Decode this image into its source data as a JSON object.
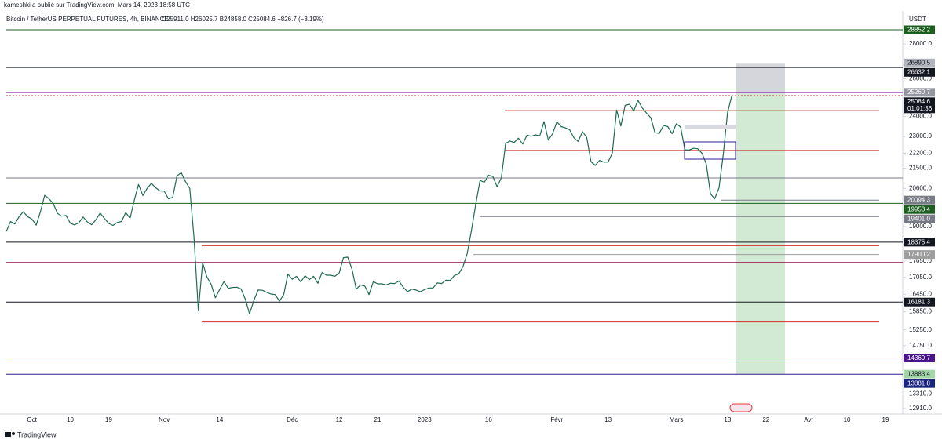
{
  "header": {
    "published": "kameshki a publié sur TradingView.com, Mars 14, 2023 18:58 UTC",
    "brand": "TradingView"
  },
  "chart_data": {
    "type": "line",
    "title": "Bitcoin / TetherUS PERPETUAL FUTURES, 4h, BINANCE",
    "ohlc": "O25911.0 H26025.7 B24858.0 C25084.6 −826.7 (−3.19%)",
    "y_unit": "USDT",
    "log_scale": true,
    "ylim": [
      12820,
      30130
    ],
    "yticks": [
      {
        "value": 28000,
        "label": "28000.0"
      },
      {
        "value": 26000,
        "label": "26000.0"
      },
      {
        "value": 24000,
        "label": "24000.0"
      },
      {
        "value": 23000,
        "label": "23000.0"
      },
      {
        "value": 22200,
        "label": "22200.0"
      },
      {
        "value": 21500,
        "label": "21500.0"
      },
      {
        "value": 20600,
        "label": "20600.0"
      },
      {
        "value": 19000,
        "label": "19000.0"
      },
      {
        "value": 17650,
        "label": "17650.0"
      },
      {
        "value": 17050,
        "label": "17050.0"
      },
      {
        "value": 16450,
        "label": "16450.0"
      },
      {
        "value": 15850,
        "label": "15850.0"
      },
      {
        "value": 15250,
        "label": "15250.0"
      },
      {
        "value": 14750,
        "label": "14750.0"
      },
      {
        "value": 13310,
        "label": "13310.0"
      },
      {
        "value": 12910,
        "label": "12910.0"
      }
    ],
    "categories": [
      null,
      null,
      null,
      null,
      null,
      null,
      "Oct",
      null,
      null,
      null,
      null,
      null,
      null,
      null,
      null,
      "10",
      null,
      null,
      null,
      null,
      null,
      null,
      null,
      null,
      "19",
      null,
      null,
      null,
      null,
      null,
      null,
      null,
      null,
      null,
      null,
      null,
      null,
      "Nov",
      null,
      null,
      null,
      null,
      null,
      null,
      null,
      null,
      null,
      null,
      null,
      null,
      "14",
      null,
      null,
      null,
      null,
      null,
      null,
      null,
      null,
      null,
      null,
      null,
      null,
      null,
      null,
      null,
      null,
      "Déc",
      null,
      null,
      null,
      null,
      null,
      null,
      null,
      null,
      null,
      null,
      "12",
      null,
      null,
      null,
      null,
      null,
      null,
      null,
      null,
      "21",
      null,
      null,
      null,
      null,
      null,
      null,
      null,
      null,
      null,
      null,
      "2023",
      null,
      null,
      null,
      null,
      null,
      null,
      null,
      null,
      null,
      null,
      null,
      null,
      null,
      null,
      "16",
      null,
      null,
      null,
      null,
      null,
      null,
      null,
      null,
      null,
      null,
      null,
      null,
      null,
      null,
      null,
      "Févr",
      null,
      null,
      null,
      null,
      null,
      null,
      null,
      null,
      null,
      null,
      null,
      "13",
      null,
      null,
      null,
      null,
      null,
      null,
      null,
      null,
      null,
      null,
      null,
      null,
      null,
      null,
      null,
      "Mars",
      null,
      null,
      null,
      null,
      null,
      null,
      null,
      null,
      null,
      null,
      null,
      "13",
      null,
      null,
      null,
      null,
      null,
      null,
      null,
      null,
      "22",
      null,
      null,
      null,
      null,
      null,
      null,
      null,
      null,
      null,
      "Avr",
      null,
      null,
      null,
      null,
      null,
      null,
      null,
      null,
      "10",
      null,
      null,
      null,
      null,
      null,
      null,
      null,
      null,
      "19",
      null,
      null,
      null
    ],
    "series": [
      {
        "name": "BTCUSDT",
        "color": "#1f6b4f",
        "values": [
          18800,
          19200,
          19100,
          19400,
          19600,
          19400,
          19300,
          19050,
          19600,
          20300,
          20150,
          19950,
          19530,
          19420,
          19450,
          19130,
          19060,
          19150,
          19380,
          19180,
          19070,
          19270,
          19550,
          19330,
          19120,
          19040,
          19160,
          19200,
          19570,
          19330,
          20090,
          20770,
          20290,
          20600,
          20820,
          20630,
          20490,
          20480,
          20150,
          20210,
          21150,
          21300,
          20900,
          20590,
          18540,
          15880,
          17590,
          17070,
          16800,
          16330,
          16620,
          16900,
          16660,
          16690,
          16700,
          16640,
          16280,
          15780,
          16230,
          16600,
          16590,
          16520,
          16460,
          16440,
          16210,
          16440,
          17170,
          16980,
          17090,
          16890,
          17110,
          16970,
          17090,
          16840,
          17230,
          17130,
          17130,
          17090,
          17210,
          17780,
          17800,
          17350,
          16630,
          16780,
          16740,
          16440,
          16900,
          16820,
          16820,
          16780,
          16840,
          16830,
          16920,
          16700,
          16540,
          16630,
          16600,
          16540,
          16610,
          16670,
          16670,
          16850,
          16830,
          16950,
          16940,
          17120,
          17180,
          17440,
          17940,
          18850,
          19930,
          20950,
          20870,
          21180,
          21130,
          20670,
          21070,
          22670,
          22780,
          22710,
          22920,
          22630,
          23060,
          23010,
          23080,
          23030,
          23740,
          22830,
          23130,
          23730,
          23490,
          23430,
          23330,
          22940,
          22760,
          23240,
          22960,
          21800,
          21630,
          21860,
          21780,
          21780,
          22200,
          24330,
          23520,
          24570,
          24630,
          24280,
          24840,
          24440,
          24180,
          23940,
          23190,
          23150,
          23550,
          23490,
          23140,
          23630,
          23470,
          22360,
          22350,
          22430,
          22410,
          22200,
          21700,
          20360,
          20150,
          20630,
          22140,
          24190,
          25084.6,
          null,
          null,
          null,
          null,
          null,
          null,
          null,
          null,
          null,
          null,
          null,
          null,
          null,
          null,
          null,
          null,
          null,
          null,
          null,
          null,
          null,
          null,
          null,
          null,
          null,
          null,
          null,
          null,
          null,
          null,
          null,
          null,
          null,
          null,
          null,
          null,
          null,
          null,
          null
        ]
      }
    ],
    "levels": [
      {
        "value": 28852.2,
        "line": "#1b5e20",
        "box": "#1b5e20",
        "text_color": "#ffffff"
      },
      {
        "value": 26890.5,
        "line": null,
        "box": "#b2b5be",
        "text_color": "#131722"
      },
      {
        "value": 26632.1,
        "line": "#131722",
        "box": "#131722",
        "text_color": "#ffffff"
      },
      {
        "value": 25260.7,
        "line": "#8e24aa",
        "box": "#9598a1",
        "text_color": "#ffffff"
      },
      {
        "value": 25084.6,
        "line": "#d32f2f",
        "box": "#131722",
        "text_color": "#ffffff",
        "countdown": "01:01:36",
        "dashed": true
      },
      {
        "value": 20094.3,
        "line": "#787b86",
        "box": "#787b86",
        "text_color": "#ffffff"
      },
      {
        "value": 19953.4,
        "line": "#1b5e20",
        "box": "#1b5e20",
        "text_color": "#ffffff"
      },
      {
        "value": 19401.0,
        "label": "19401.0",
        "line": "#787b86",
        "box": "#787b86",
        "text_color": "#ffffff"
      },
      {
        "value": 18375.4,
        "line": "#131722",
        "box": "#131722",
        "text_color": "#ffffff"
      },
      {
        "value": 17900.2,
        "line": "#9e9e9e",
        "box": "#9e9e9e",
        "text_color": "#ffffff"
      },
      {
        "value": 16181.3,
        "line": "#131722",
        "box": "#131722",
        "text_color": "#ffffff"
      },
      {
        "value": 14369.7,
        "line": "#4a148c",
        "box": "#4a148c",
        "text_color": "#ffffff"
      },
      {
        "value": 13883.4,
        "line": null,
        "box": "#a5d6a7",
        "text_color": "#131722"
      },
      {
        "value": 13881.8,
        "line": "#311b92",
        "box": "#1a237e",
        "text_color": "#ffffff"
      }
    ],
    "lines": [
      {
        "value": 24300,
        "color": "#d32f2f"
      },
      {
        "value": 22330,
        "color": "#d32f2f"
      },
      {
        "value": 21060,
        "color": "#787b86"
      },
      {
        "value": 18240,
        "color": "#d32f2f"
      },
      {
        "value": 17600,
        "color": "#880e4f"
      },
      {
        "value": 15510,
        "color": "#d32f2f"
      }
    ]
  }
}
